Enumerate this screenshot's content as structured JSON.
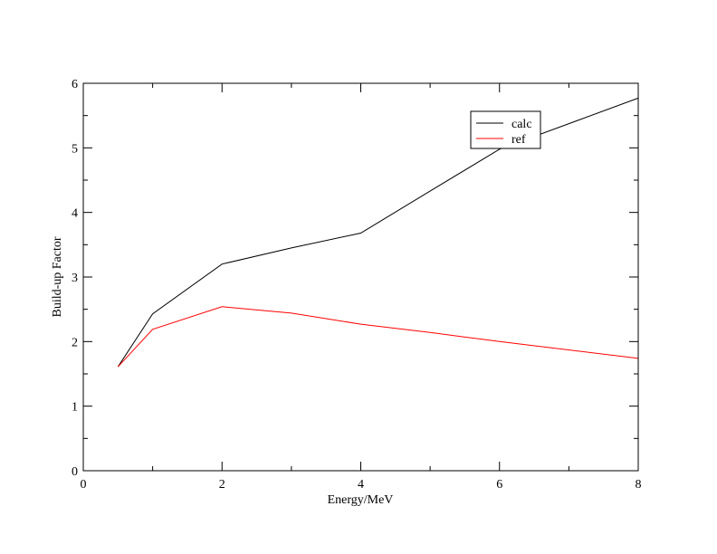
{
  "chart_data": {
    "type": "line",
    "title": "",
    "xlabel": "Energy/MeV",
    "ylabel": "Build-up Factor",
    "xlim": [
      0,
      8
    ],
    "ylim": [
      0,
      6
    ],
    "x_ticks": [
      0,
      2,
      4,
      6,
      8
    ],
    "y_ticks": [
      0,
      1,
      2,
      3,
      4,
      5,
      6
    ],
    "grid": false,
    "legend_position": "top-right",
    "series": [
      {
        "name": "calc",
        "color": "#000000",
        "x": [
          0.5,
          1,
          2,
          3,
          4,
          5,
          6,
          8
        ],
        "y": [
          1.61,
          2.43,
          3.2,
          3.45,
          3.68,
          4.33,
          4.98,
          5.77
        ]
      },
      {
        "name": "ref",
        "color": "#ff0000",
        "x": [
          0.5,
          1,
          2,
          3,
          4,
          5,
          6,
          8
        ],
        "y": [
          1.61,
          2.19,
          2.54,
          2.44,
          2.27,
          2.14,
          2.0,
          1.74
        ]
      }
    ]
  }
}
